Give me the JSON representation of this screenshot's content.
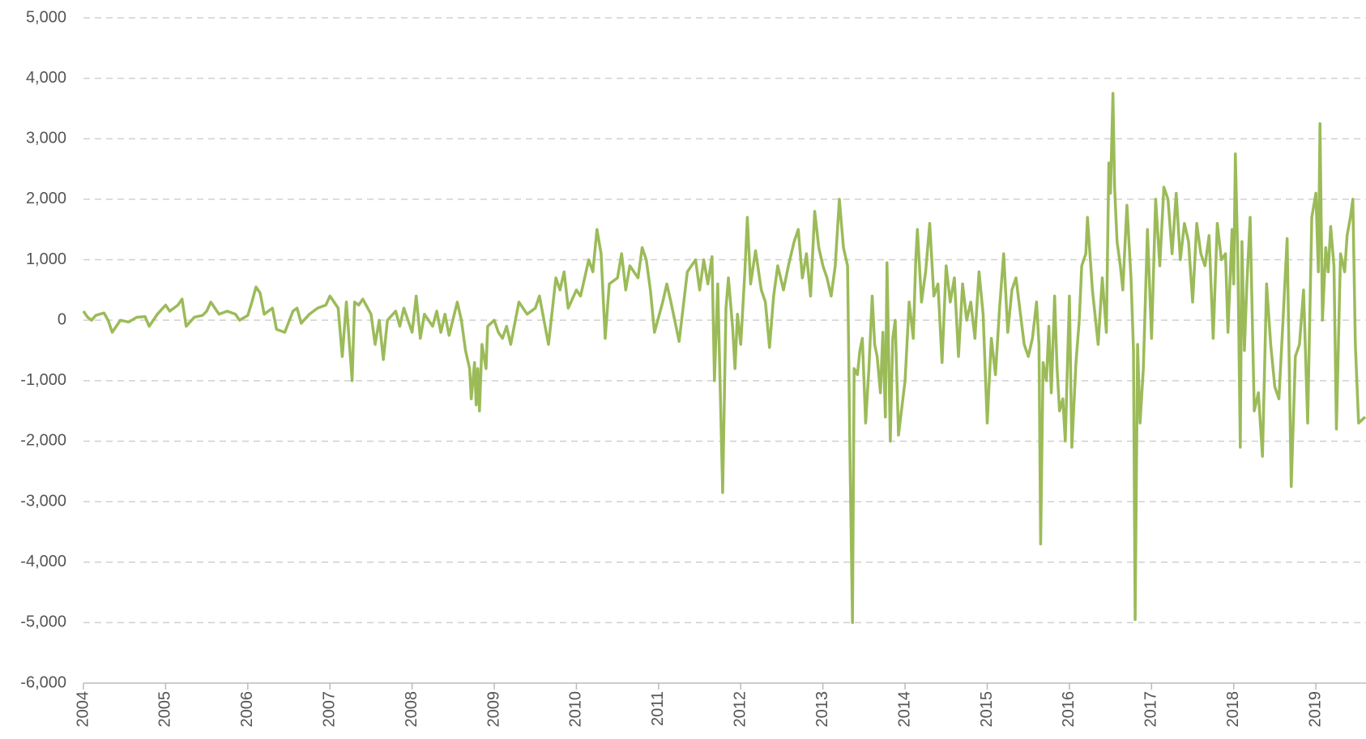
{
  "chart_data": {
    "type": "line",
    "xlim": [
      2004,
      2019.61
    ],
    "xticks": [
      2004,
      2005,
      2006,
      2007,
      2008,
      2009,
      2010,
      2011,
      2012,
      2013,
      2014,
      2015,
      2016,
      2017,
      2018,
      2019
    ],
    "ylim": [
      -6000,
      5000
    ],
    "yticks": [
      {
        "value": -6000,
        "label": "-6,000"
      },
      {
        "value": -5000,
        "label": "-5,000"
      },
      {
        "value": -4000,
        "label": "-4,000"
      },
      {
        "value": -3000,
        "label": "-3,000"
      },
      {
        "value": -2000,
        "label": "-2,000"
      },
      {
        "value": -1000,
        "label": "-1,000"
      },
      0,
      {
        "value": 1000,
        "label": "1,000"
      },
      {
        "value": 2000,
        "label": "2,000"
      },
      {
        "value": 3000,
        "label": "3,000"
      },
      {
        "value": 4000,
        "label": "4,000"
      },
      {
        "value": 5000,
        "label": "5,000"
      }
    ],
    "grid": true,
    "x": [
      2004.0,
      2004.05,
      2004.1,
      2004.15,
      2004.25,
      2004.3,
      2004.35,
      2004.45,
      2004.55,
      2004.65,
      2004.75,
      2004.8,
      2004.9,
      2005.0,
      2005.05,
      2005.15,
      2005.2,
      2005.25,
      2005.35,
      2005.45,
      2005.5,
      2005.55,
      2005.65,
      2005.75,
      2005.85,
      2005.9,
      2006.0,
      2006.05,
      2006.1,
      2006.15,
      2006.2,
      2006.3,
      2006.35,
      2006.45,
      2006.55,
      2006.6,
      2006.65,
      2006.75,
      2006.85,
      2006.95,
      2007.0,
      2007.05,
      2007.1,
      2007.15,
      2007.2,
      2007.27,
      2007.3,
      2007.35,
      2007.4,
      2007.5,
      2007.55,
      2007.6,
      2007.65,
      2007.7,
      2007.8,
      2007.85,
      2007.9,
      2008.0,
      2008.05,
      2008.1,
      2008.15,
      2008.25,
      2008.3,
      2008.35,
      2008.4,
      2008.45,
      2008.55,
      2008.6,
      2008.65,
      2008.7,
      2008.72,
      2008.76,
      2008.78,
      2008.8,
      2008.82,
      2008.85,
      2008.9,
      2008.92,
      2009.0,
      2009.05,
      2009.1,
      2009.15,
      2009.2,
      2009.3,
      2009.4,
      2009.5,
      2009.55,
      2009.66,
      2009.75,
      2009.8,
      2009.85,
      2009.9,
      2010.0,
      2010.05,
      2010.15,
      2010.2,
      2010.25,
      2010.3,
      2010.35,
      2010.4,
      2010.5,
      2010.55,
      2010.6,
      2010.65,
      2010.75,
      2010.8,
      2010.85,
      2010.9,
      2010.95,
      2011.05,
      2011.1,
      2011.15,
      2011.25,
      2011.35,
      2011.45,
      2011.5,
      2011.55,
      2011.6,
      2011.65,
      2011.68,
      2011.72,
      2011.78,
      2011.82,
      2011.85,
      2011.9,
      2011.93,
      2011.96,
      2012.0,
      2012.05,
      2012.08,
      2012.12,
      2012.18,
      2012.25,
      2012.3,
      2012.35,
      2012.4,
      2012.45,
      2012.52,
      2012.58,
      2012.65,
      2012.7,
      2012.75,
      2012.8,
      2012.85,
      2012.9,
      2012.95,
      2013.0,
      2013.05,
      2013.1,
      2013.15,
      2013.2,
      2013.25,
      2013.3,
      2013.33,
      2013.36,
      2013.38,
      2013.42,
      2013.45,
      2013.48,
      2013.52,
      2013.56,
      2013.6,
      2013.63,
      2013.66,
      2013.7,
      2013.73,
      2013.76,
      2013.78,
      2013.82,
      2013.85,
      2013.88,
      2013.92,
      2014.0,
      2014.05,
      2014.1,
      2014.13,
      2014.15,
      2014.2,
      2014.25,
      2014.3,
      2014.35,
      2014.4,
      2014.45,
      2014.5,
      2014.55,
      2014.6,
      2014.65,
      2014.7,
      2014.75,
      2014.8,
      2014.85,
      2014.9,
      2014.95,
      2015.0,
      2015.05,
      2015.1,
      2015.15,
      2015.2,
      2015.25,
      2015.3,
      2015.35,
      2015.45,
      2015.5,
      2015.55,
      2015.6,
      2015.63,
      2015.65,
      2015.68,
      2015.72,
      2015.75,
      2015.78,
      2015.82,
      2015.85,
      2015.88,
      2015.92,
      2015.95,
      2016.0,
      2016.03,
      2016.08,
      2016.12,
      2016.15,
      2016.2,
      2016.22,
      2016.28,
      2016.35,
      2016.4,
      2016.45,
      2016.48,
      2016.5,
      2016.53,
      2016.55,
      2016.58,
      2016.62,
      2016.65,
      2016.7,
      2016.75,
      2016.78,
      2016.8,
      2016.83,
      2016.86,
      2016.9,
      2016.95,
      2017.0,
      2017.05,
      2017.1,
      2017.15,
      2017.2,
      2017.25,
      2017.3,
      2017.35,
      2017.4,
      2017.45,
      2017.5,
      2017.55,
      2017.6,
      2017.65,
      2017.7,
      2017.75,
      2017.8,
      2017.85,
      2017.9,
      2017.93,
      2017.98,
      2018.0,
      2018.02,
      2018.05,
      2018.08,
      2018.1,
      2018.13,
      2018.16,
      2018.2,
      2018.25,
      2018.3,
      2018.35,
      2018.4,
      2018.45,
      2018.5,
      2018.55,
      2018.6,
      2018.65,
      2018.7,
      2018.75,
      2018.8,
      2018.85,
      2018.9,
      2018.95,
      2019.0,
      2019.03,
      2019.05,
      2019.08,
      2019.12,
      2019.15,
      2019.18,
      2019.22,
      2019.25,
      2019.3,
      2019.35,
      2019.38,
      2019.42,
      2019.45,
      2019.48,
      2019.52,
      2019.6
    ],
    "series": [
      {
        "color": "#9bbb59",
        "values": [
          150,
          50,
          0,
          80,
          120,
          0,
          -200,
          0,
          -30,
          50,
          60,
          -100,
          100,
          250,
          150,
          250,
          350,
          -100,
          50,
          80,
          150,
          300,
          100,
          150,
          100,
          0,
          80,
          300,
          550,
          450,
          100,
          200,
          -150,
          -200,
          150,
          200,
          -50,
          100,
          200,
          250,
          400,
          300,
          200,
          -600,
          300,
          -1000,
          300,
          250,
          350,
          100,
          -400,
          0,
          -650,
          0,
          150,
          -100,
          200,
          -200,
          400,
          -300,
          100,
          -100,
          150,
          -200,
          100,
          -250,
          300,
          0,
          -500,
          -800,
          -1300,
          -700,
          -1400,
          -800,
          -1500,
          -400,
          -800,
          -100,
          0,
          -200,
          -300,
          -100,
          -400,
          300,
          100,
          200,
          400,
          -400,
          700,
          500,
          800,
          200,
          500,
          400,
          1000,
          800,
          1500,
          1100,
          -300,
          600,
          700,
          1100,
          500,
          900,
          700,
          1200,
          1000,
          500,
          -200,
          300,
          600,
          300,
          -350,
          800,
          1000,
          500,
          1000,
          600,
          1050,
          -1000,
          600,
          -2850,
          200,
          700,
          -100,
          -800,
          100,
          -400,
          800,
          1700,
          600,
          1150,
          500,
          300,
          -450,
          400,
          900,
          500,
          900,
          1300,
          1500,
          700,
          1100,
          400,
          1800,
          1200,
          900,
          700,
          400,
          900,
          2000,
          1200,
          900,
          -2300,
          -5000,
          -800,
          -900,
          -500,
          -300,
          -1700,
          -800,
          400,
          -400,
          -600,
          -1200,
          -200,
          -1600,
          950,
          -2000,
          -300,
          0,
          -1900,
          -1000,
          300,
          -300,
          1000,
          1500,
          300,
          800,
          1600,
          400,
          600,
          -700,
          900,
          300,
          700,
          -600,
          600,
          0,
          300,
          -300,
          800,
          100,
          -1700,
          -300,
          -900,
          200,
          1100,
          -200,
          500,
          700,
          -400,
          -600,
          -300,
          300,
          -400,
          -3700,
          -700,
          -1000,
          -100,
          -1200,
          400,
          -800,
          -1500,
          -1300,
          -2000,
          400,
          -2100,
          -700,
          0,
          900,
          1100,
          1700,
          500,
          -400,
          700,
          -200,
          2600,
          2100,
          3750,
          2200,
          1300,
          900,
          500,
          1900,
          700,
          -500,
          -4950,
          -400,
          -1700,
          -800,
          1500,
          -300,
          2000,
          900,
          2200,
          2000,
          1100,
          2100,
          1000,
          1600,
          1300,
          300,
          1600,
          1100,
          900,
          1400,
          -300,
          1600,
          1000,
          1100,
          -200,
          1500,
          600,
          2750,
          1000,
          -2100,
          1300,
          -500,
          600,
          1700,
          -1500,
          -1200,
          -2250,
          600,
          -400,
          -1100,
          -1300,
          0,
          1350,
          -2750,
          -600,
          -400,
          500,
          -1700,
          1700,
          2100,
          800,
          3250,
          0,
          1200,
          800,
          1550,
          900,
          -1800,
          1100,
          800,
          1400,
          1700,
          2000,
          -400,
          -1700,
          -1600
        ]
      }
    ]
  }
}
